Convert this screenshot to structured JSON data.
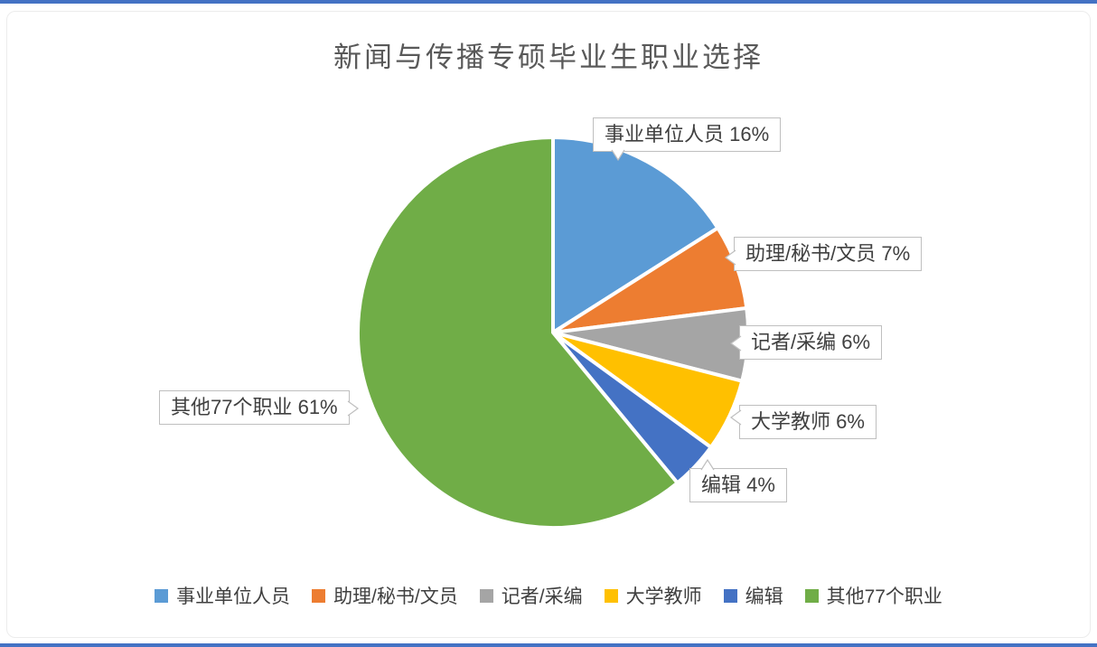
{
  "chart_data": {
    "type": "pie",
    "title": "新闻与传播专硕毕业生职业选择",
    "categories": [
      "事业单位人员",
      "助理/秘书/文员",
      "记者/采编",
      "大学教师",
      "编辑",
      "其他77个职业"
    ],
    "values": [
      16,
      7,
      6,
      6,
      4,
      61
    ],
    "colors": [
      "#5B9BD5",
      "#ED7D31",
      "#A5A5A5",
      "#FFC000",
      "#4472C4",
      "#70AD47"
    ],
    "labels": [
      "事业单位人员 16%",
      "助理/秘书/文员 7%",
      "记者/采编 6%",
      "大学教师 6%",
      "编辑 4%",
      "其他77个职业 61%"
    ],
    "legend_position": "bottom",
    "start_angle_deg": 0,
    "direction": "clockwise",
    "slice_border_color": "#ffffff"
  },
  "frame": {
    "accent_color": "#4472C4",
    "callout_border_color": "#bfbfbf",
    "title_color": "#595959",
    "text_color": "#404040"
  }
}
